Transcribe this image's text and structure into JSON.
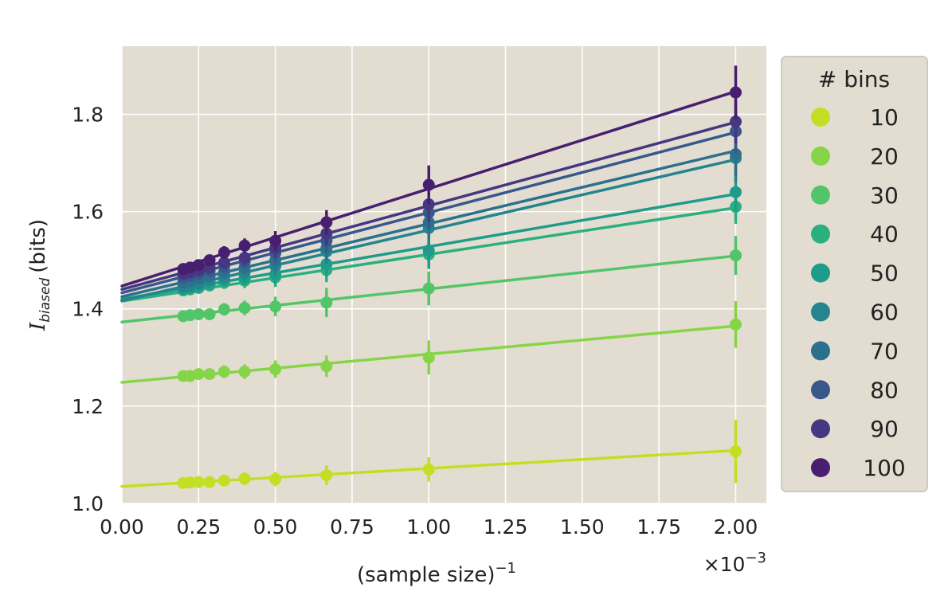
{
  "chart_data": {
    "type": "line",
    "xlabel": "(sample size)",
    "xlabel_superscript": "−1",
    "x_scale_factor_label": "×10",
    "x_scale_factor_exponent": "−3",
    "ylabel_main": "I",
    "ylabel_subscript": "biased",
    "ylabel_unit": "(bits)",
    "xlim": [
      0.0,
      2.1
    ],
    "ylim": [
      1.0,
      1.94
    ],
    "x_ticks": [
      0.0,
      0.25,
      0.5,
      0.75,
      1.0,
      1.25,
      1.5,
      1.75,
      2.0
    ],
    "x_tick_labels": [
      "0.00",
      "0.25",
      "0.50",
      "0.75",
      "1.00",
      "1.25",
      "1.50",
      "1.75",
      "2.00"
    ],
    "y_ticks": [
      1.0,
      1.2,
      1.4,
      1.6,
      1.8
    ],
    "y_tick_labels": [
      "1.0",
      "1.2",
      "1.4",
      "1.6",
      "1.8"
    ],
    "grid": true,
    "background": "#e3ddd1",
    "legend": {
      "title": "# bins",
      "placement": "outside-right"
    },
    "x": [
      0.2,
      0.2222,
      0.25,
      0.2857,
      0.3333,
      0.4,
      0.5,
      0.6667,
      1.0,
      2.0
    ],
    "series": [
      {
        "name": "10",
        "color": "#c2df23",
        "fit": [
          1.035,
          0.037
        ],
        "values": [
          1.042,
          1.043,
          1.044,
          1.044,
          1.047,
          1.051,
          1.05,
          1.058,
          1.07,
          1.107
        ],
        "errors": [
          0.008,
          0.008,
          0.009,
          0.01,
          0.012,
          0.013,
          0.015,
          0.02,
          0.025,
          0.065
        ]
      },
      {
        "name": "20",
        "color": "#86d549",
        "fit": [
          1.249,
          0.058
        ],
        "values": [
          1.262,
          1.262,
          1.266,
          1.266,
          1.271,
          1.271,
          1.276,
          1.282,
          1.3,
          1.368
        ],
        "errors": [
          0.008,
          0.009,
          0.01,
          0.011,
          0.013,
          0.015,
          0.018,
          0.022,
          0.035,
          0.048
        ]
      },
      {
        "name": "30",
        "color": "#52c569",
        "fit": [
          1.373,
          0.068
        ],
        "values": [
          1.385,
          1.387,
          1.389,
          1.389,
          1.399,
          1.402,
          1.405,
          1.413,
          1.442,
          1.51
        ],
        "errors": [
          0.008,
          0.009,
          0.01,
          0.011,
          0.013,
          0.015,
          0.02,
          0.03,
          0.035,
          0.04
        ]
      },
      {
        "name": "40",
        "color": "#2ab07f",
        "fit": [
          1.416,
          0.096
        ],
        "values": [
          1.438,
          1.44,
          1.443,
          1.448,
          1.454,
          1.458,
          1.465,
          1.48,
          1.512,
          1.61
        ],
        "errors": [
          0.008,
          0.009,
          0.01,
          0.011,
          0.013,
          0.015,
          0.02,
          0.025,
          0.03,
          0.035
        ]
      },
      {
        "name": "50",
        "color": "#1e9b8a",
        "fit": [
          1.42,
          0.108
        ],
        "values": [
          1.441,
          1.443,
          1.446,
          1.452,
          1.459,
          1.464,
          1.471,
          1.492,
          1.52,
          1.64
        ],
        "errors": [
          0.008,
          0.009,
          0.01,
          0.011,
          0.013,
          0.015,
          0.02,
          0.025,
          0.035,
          0.04
        ]
      },
      {
        "name": "60",
        "color": "#25858e",
        "fit": [
          1.417,
          0.145
        ],
        "values": [
          1.445,
          1.447,
          1.452,
          1.459,
          1.466,
          1.475,
          1.488,
          1.518,
          1.566,
          1.71
        ],
        "errors": [
          0.008,
          0.009,
          0.01,
          0.011,
          0.013,
          0.015,
          0.02,
          0.025,
          0.035,
          0.05
        ]
      },
      {
        "name": "70",
        "color": "#2d708e",
        "fit": [
          1.425,
          0.15
        ],
        "values": [
          1.455,
          1.457,
          1.462,
          1.468,
          1.475,
          1.485,
          1.5,
          1.525,
          1.578,
          1.718
        ],
        "errors": [
          0.008,
          0.009,
          0.01,
          0.011,
          0.013,
          0.015,
          0.02,
          0.025,
          0.035,
          0.045
        ]
      },
      {
        "name": "80",
        "color": "#38588c",
        "fit": [
          1.433,
          0.165
        ],
        "values": [
          1.465,
          1.468,
          1.472,
          1.478,
          1.487,
          1.497,
          1.515,
          1.54,
          1.598,
          1.765
        ],
        "errors": [
          0.008,
          0.009,
          0.01,
          0.011,
          0.013,
          0.015,
          0.02,
          0.025,
          0.035,
          0.045
        ]
      },
      {
        "name": "90",
        "color": "#453781",
        "fit": [
          1.44,
          0.172
        ],
        "values": [
          1.472,
          1.475,
          1.479,
          1.485,
          1.495,
          1.505,
          1.525,
          1.555,
          1.615,
          1.785
        ],
        "errors": [
          0.008,
          0.009,
          0.01,
          0.011,
          0.013,
          0.015,
          0.02,
          0.025,
          0.035,
          0.045
        ]
      },
      {
        "name": "100",
        "color": "#481f70",
        "fit": [
          1.447,
          0.2
        ],
        "values": [
          1.482,
          1.485,
          1.49,
          1.5,
          1.516,
          1.53,
          1.54,
          1.578,
          1.655,
          1.845
        ],
        "errors": [
          0.008,
          0.009,
          0.01,
          0.011,
          0.013,
          0.015,
          0.02,
          0.025,
          0.04,
          0.055
        ]
      }
    ]
  }
}
